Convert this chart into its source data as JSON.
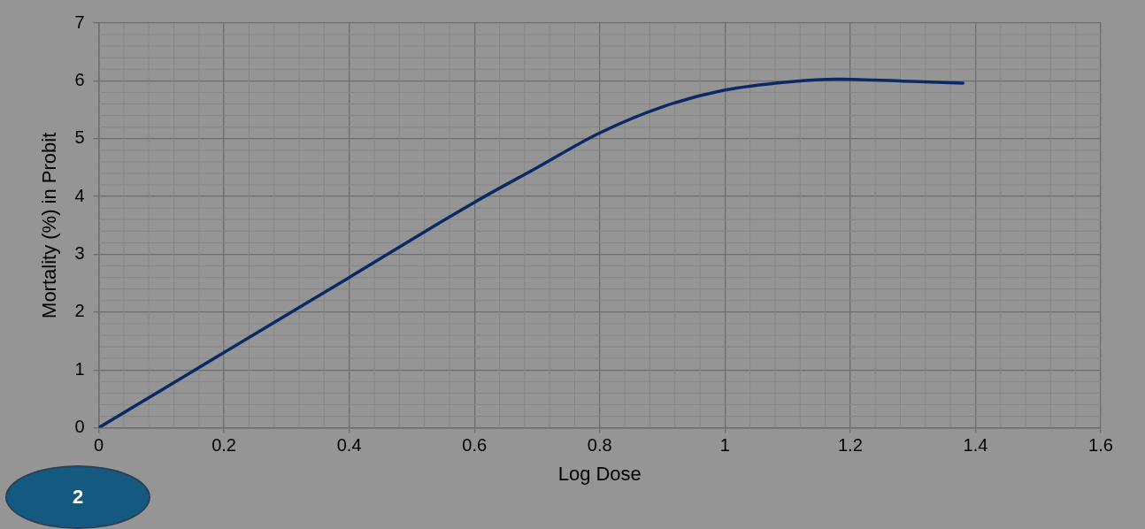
{
  "chart_data": {
    "type": "line",
    "xlabel": "Log Dose",
    "ylabel": "Mortality (%) in Probit",
    "x": [
      0,
      0.2,
      0.4,
      0.6,
      0.7,
      0.8,
      0.9,
      1.0,
      1.1,
      1.18,
      1.3,
      1.38
    ],
    "series": [
      {
        "color": "#0a2a66",
        "values": [
          0,
          1.3,
          2.6,
          3.9,
          4.5,
          5.1,
          5.55,
          5.84,
          5.98,
          6.03,
          5.99,
          5.96
        ]
      }
    ],
    "xlim": [
      0,
      1.6
    ],
    "xticks": [
      0,
      0.2,
      0.4,
      0.6,
      0.8,
      1,
      1.2,
      1.4,
      1.6
    ],
    "ylim": [
      0,
      7
    ],
    "yticks": [
      0,
      1,
      2,
      3,
      4,
      5,
      6,
      7
    ],
    "grid": true,
    "legend": false,
    "marker": "none",
    "line_style": "solid",
    "annotations": [
      "2"
    ]
  }
}
